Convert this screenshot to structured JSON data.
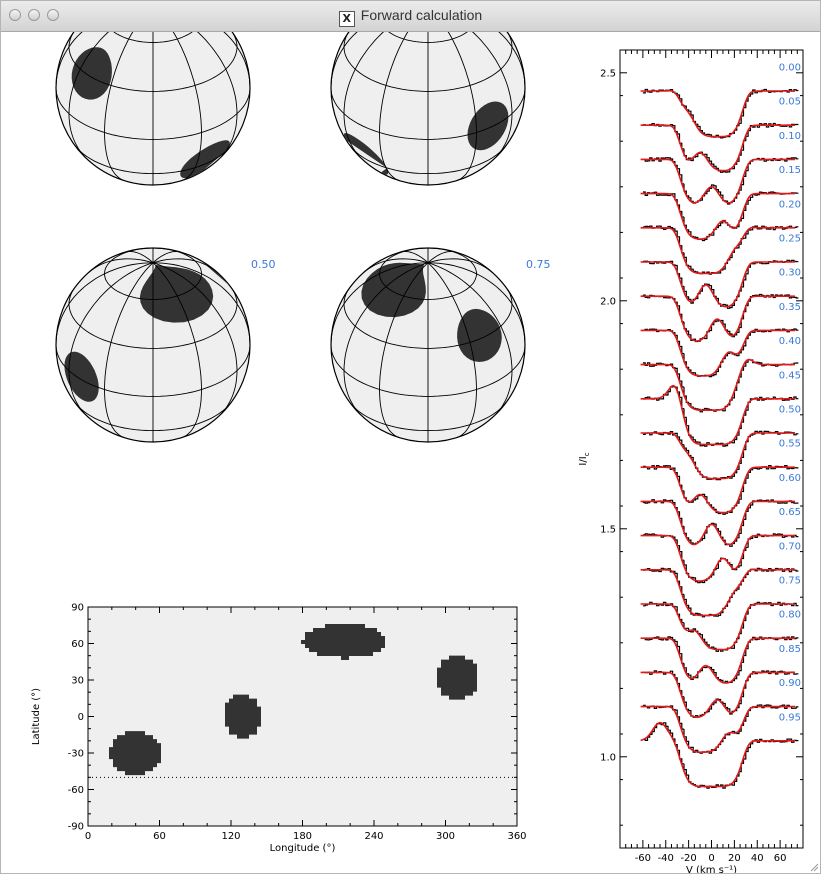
{
  "window": {
    "title": "Forward calculation",
    "title_icon": "x11-icon"
  },
  "colors": {
    "spot": "#333333",
    "sphere_fill": "#efefef",
    "phase_label": "#3a7ad8",
    "model_line": "#e41a1a",
    "observed_line": "#000000",
    "grid": "#000000"
  },
  "globes": [
    {
      "phase_label": "0.00",
      "spots": [
        {
          "lon": 40,
          "lat": -30,
          "r": 18
        },
        {
          "lon": 130,
          "lat": 0,
          "r": 16
        },
        {
          "lon": 215,
          "lat": 65,
          "r": 22
        },
        {
          "lon": 310,
          "lat": 32,
          "r": 16
        }
      ]
    },
    {
      "phase_label": "0.25",
      "spots": [
        {
          "lon": 40,
          "lat": -30,
          "r": 18
        },
        {
          "lon": 130,
          "lat": 0,
          "r": 16
        },
        {
          "lon": 215,
          "lat": 65,
          "r": 22
        },
        {
          "lon": 310,
          "lat": 32,
          "r": 16
        }
      ]
    },
    {
      "phase_label": "0.50",
      "spots": [
        {
          "lon": 40,
          "lat": -30,
          "r": 18
        },
        {
          "lon": 130,
          "lat": 0,
          "r": 16
        },
        {
          "lon": 215,
          "lat": 65,
          "r": 22
        },
        {
          "lon": 310,
          "lat": 32,
          "r": 16
        }
      ]
    },
    {
      "phase_label": "0.75",
      "spots": [
        {
          "lon": 40,
          "lat": -30,
          "r": 18
        },
        {
          "lon": 130,
          "lat": 0,
          "r": 16
        },
        {
          "lon": 215,
          "lat": 65,
          "r": 22
        },
        {
          "lon": 310,
          "lat": 32,
          "r": 16
        }
      ]
    }
  ],
  "chart_data": [
    {
      "type": "heatmap",
      "xlabel": "Longitude (°)",
      "ylabel": "Latitude (°)",
      "xlim": [
        0,
        360
      ],
      "ylim": [
        -90,
        90
      ],
      "xticks": [
        0,
        60,
        120,
        180,
        240,
        300,
        360
      ],
      "yticks": [
        -90,
        -60,
        -30,
        0,
        30,
        60,
        90
      ],
      "reference_line_latitude": -50,
      "spots": [
        {
          "lon_min": 18,
          "lon_max": 62,
          "lat_min": -48,
          "lat_max": -12
        },
        {
          "lon_min": 114,
          "lon_max": 146,
          "lat_min": -18,
          "lat_max": 18
        },
        {
          "lon_min": 180,
          "lon_max": 250,
          "lat_min": 48,
          "lat_max": 76
        },
        {
          "lon_min": 292,
          "lon_max": 328,
          "lat_min": 14,
          "lat_max": 50
        }
      ]
    },
    {
      "type": "line",
      "xlabel": "V (km s⁻¹)",
      "ylabel": "I/I",
      "ylabel_sub": "c",
      "xlim": [
        -80,
        80
      ],
      "ylim": [
        0.8,
        2.55
      ],
      "xticks": [
        -60,
        -40,
        -20,
        0,
        20,
        40,
        60
      ],
      "yticks": [
        1.0,
        1.5,
        2.0,
        2.5
      ],
      "ytick_labels": [
        "1.0",
        "1.5",
        "2.0",
        "2.5"
      ],
      "continuum_offset_step": 0.075,
      "series": [
        {
          "phase": "0.00",
          "continuum": 2.46,
          "depth": 0.1,
          "bump_v": -20,
          "bump_height": 0.04
        },
        {
          "phase": "0.05",
          "continuum": 2.385,
          "depth": 0.1,
          "bump_v": -10,
          "bump_height": 0.04
        },
        {
          "phase": "0.10",
          "continuum": 2.31,
          "depth": 0.1,
          "bump_v": 0,
          "bump_height": 0.04
        },
        {
          "phase": "0.15",
          "continuum": 2.235,
          "depth": 0.1,
          "bump_v": 10,
          "bump_height": 0.04
        },
        {
          "phase": "0.20",
          "continuum": 2.16,
          "depth": 0.1,
          "bump_v": 20,
          "bump_height": 0.04
        },
        {
          "phase": "0.25",
          "continuum": 2.085,
          "depth": 0.1,
          "bump_v": -5,
          "bump_height": 0.05
        },
        {
          "phase": "0.30",
          "continuum": 2.01,
          "depth": 0.1,
          "bump_v": 5,
          "bump_height": 0.05
        },
        {
          "phase": "0.35",
          "continuum": 1.935,
          "depth": 0.1,
          "bump_v": 15,
          "bump_height": 0.05
        },
        {
          "phase": "0.40",
          "continuum": 1.86,
          "depth": 0.1,
          "bump_v": 25,
          "bump_height": 0.04
        },
        {
          "phase": "0.45",
          "continuum": 1.785,
          "depth": 0.1,
          "bump_v": -30,
          "bump_height": 0.04
        },
        {
          "phase": "0.50",
          "continuum": 1.71,
          "depth": 0.1,
          "bump_v": -20,
          "bump_height": 0.04
        },
        {
          "phase": "0.55",
          "continuum": 1.635,
          "depth": 0.1,
          "bump_v": -10,
          "bump_height": 0.04
        },
        {
          "phase": "0.60",
          "continuum": 1.56,
          "depth": 0.1,
          "bump_v": 0,
          "bump_height": 0.05
        },
        {
          "phase": "0.65",
          "continuum": 1.485,
          "depth": 0.1,
          "bump_v": 10,
          "bump_height": 0.05
        },
        {
          "phase": "0.70",
          "continuum": 1.41,
          "depth": 0.1,
          "bump_v": 20,
          "bump_height": 0.04
        },
        {
          "phase": "0.75",
          "continuum": 1.335,
          "depth": 0.1,
          "bump_v": -15,
          "bump_height": 0.04
        },
        {
          "phase": "0.80",
          "continuum": 1.26,
          "depth": 0.1,
          "bump_v": -5,
          "bump_height": 0.04
        },
        {
          "phase": "0.85",
          "continuum": 1.185,
          "depth": 0.1,
          "bump_v": 5,
          "bump_height": 0.04
        },
        {
          "phase": "0.90",
          "continuum": 1.11,
          "depth": 0.1,
          "bump_v": 15,
          "bump_height": 0.04
        },
        {
          "phase": "0.95",
          "continuum": 1.035,
          "depth": 0.1,
          "bump_v": -45,
          "bump_height": 0.04
        }
      ]
    }
  ]
}
